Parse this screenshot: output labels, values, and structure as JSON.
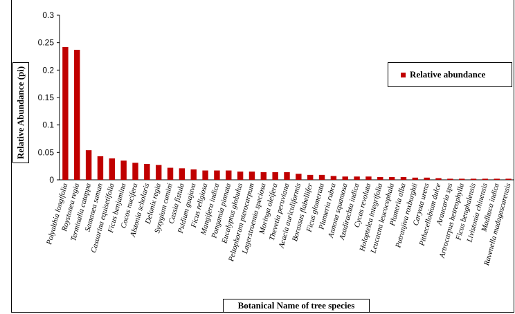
{
  "chart_data": {
    "type": "bar",
    "ylabel": "Relative Abundance (pi)",
    "xlabel": "Botanical Name of tree species",
    "ylim": [
      0,
      0.3
    ],
    "yticks": [
      "0",
      "0.05",
      "0.1",
      "0.15",
      "0.2",
      "0.25",
      "0.3"
    ],
    "grid": false,
    "legend": "right",
    "color": "#c00000",
    "series": [
      {
        "name": "Relative abundance"
      }
    ],
    "categories": [
      "Polyalthia longifolia",
      "Roystonea regia",
      "Terminalia catappa",
      "Samanea saman",
      "Casuarina equisetifolia",
      "Ficus benjamina",
      "Cocos nucifera",
      "Alstonia scholaris",
      "Delonix regia",
      "Syzygium cumini",
      "Cassia fistula",
      "Psidium guajava",
      "Ficus religiosa",
      "Mangifera indica",
      "Pongamia pinnata",
      "Eucalyptus globulus",
      "Peltophorum pterocarpum",
      "Lagerstroemia speciosa",
      "Moringa oleifera",
      "Thevetia peruviana",
      "Acacia auriculiformis",
      "Borassus flabellifer",
      "Ficus glomerata",
      "Plumeria rubra",
      "Annona squamosa",
      "Azadirachta indica",
      "Cycas revoluta",
      "Holoptelea integrifolia",
      "Leucaena leucocephala",
      "Plumeria alba",
      "Putranjiva roxburghii",
      "Caryota urens",
      "Pithecellobium dulce",
      "Araucaria sps",
      "Artrocarpus hetreophylla",
      "Ficus benghalensis",
      "Livistonia chinensis",
      "Madhuca indica",
      "Ravenella madagascarensis"
    ],
    "values": [
      0.242,
      0.237,
      0.054,
      0.043,
      0.039,
      0.035,
      0.031,
      0.029,
      0.027,
      0.022,
      0.021,
      0.019,
      0.017,
      0.017,
      0.017,
      0.015,
      0.015,
      0.014,
      0.014,
      0.014,
      0.011,
      0.009,
      0.009,
      0.007,
      0.006,
      0.006,
      0.006,
      0.005,
      0.005,
      0.005,
      0.004,
      0.004,
      0.003,
      0.002,
      0.002,
      0.002,
      0.002,
      0.002,
      0.002
    ]
  }
}
